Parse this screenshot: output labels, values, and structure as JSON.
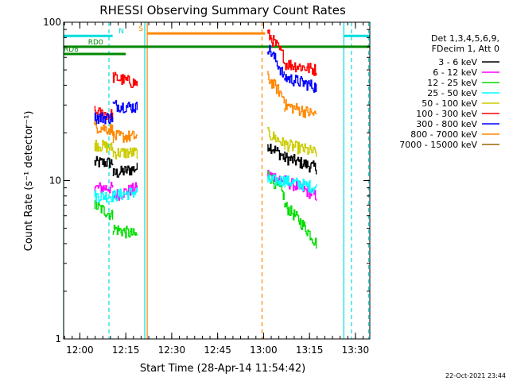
{
  "chart_data": {
    "type": "line",
    "title": "RHESSI Observing Summary Count Rates",
    "xlabel": "Start Time (28-Apr-14 11:54:42)",
    "ylabel": "Count Rate (s⁻¹ detector⁻¹)",
    "ylim": [
      1,
      100
    ],
    "yscale": "log",
    "x_unit": "minutes since 11:54:42",
    "xlim": [
      0,
      38
    ],
    "x_ticks": [
      {
        "label": "12:00",
        "t": 5.3
      },
      {
        "label": "12:15",
        "t": 20.3
      },
      {
        "label": "12:30",
        "t": 35.3
      },
      {
        "label": "12:45",
        "t": 50.3
      },
      {
        "label": "13:00",
        "t": 65.3
      },
      {
        "label": "13:15",
        "t": 80.3
      },
      {
        "label": "13:30",
        "t": 95.3
      }
    ],
    "x_range_min": [
      0,
      100
    ],
    "y_ticks": [
      {
        "label": "1",
        "v": 1
      },
      {
        "label": "10",
        "v": 10
      },
      {
        "label": "100",
        "v": 100
      }
    ],
    "legend_header": [
      "Det 1,3,4,5,6,9,",
      "FDecim 1, Att 0"
    ],
    "legend_position": "right",
    "timestamp": "22-Oct-2021 23:44",
    "series": [
      {
        "name": "3 - 6 keV",
        "color": "#000000",
        "segments": [
          {
            "t0": 10,
            "t1": 16,
            "v0": 13,
            "v1": 13
          },
          {
            "t0": 16,
            "t1": 24,
            "v0": 11,
            "v1": 12
          },
          {
            "t0": 66.5,
            "t1": 72,
            "v0": 17,
            "v1": 14
          },
          {
            "t0": 72,
            "t1": 82.5,
            "v0": 14,
            "v1": 12
          }
        ]
      },
      {
        "name": "6 - 12 keV",
        "color": "#ff00ff",
        "segments": [
          {
            "t0": 10,
            "t1": 16,
            "v0": 9,
            "v1": 9
          },
          {
            "t0": 16,
            "t1": 24,
            "v0": 8,
            "v1": 9
          },
          {
            "t0": 66.5,
            "t1": 72,
            "v0": 11,
            "v1": 10
          },
          {
            "t0": 72,
            "t1": 82.5,
            "v0": 10,
            "v1": 8
          }
        ]
      },
      {
        "name": "12 - 25 keV",
        "color": "#00dd00",
        "segments": [
          {
            "t0": 10,
            "t1": 16,
            "v0": 7,
            "v1": 6
          },
          {
            "t0": 16,
            "t1": 24,
            "v0": 5,
            "v1": 4.5
          },
          {
            "t0": 66.5,
            "t1": 72,
            "v0": 11,
            "v1": 8
          },
          {
            "t0": 72,
            "t1": 82.5,
            "v0": 7,
            "v1": 4
          }
        ]
      },
      {
        "name": "25 - 50 keV",
        "color": "#00ffff",
        "segments": [
          {
            "t0": 10,
            "t1": 16,
            "v0": 8,
            "v1": 8
          },
          {
            "t0": 16,
            "t1": 24,
            "v0": 8,
            "v1": 8.5
          },
          {
            "t0": 66.5,
            "t1": 72,
            "v0": 10,
            "v1": 10
          },
          {
            "t0": 72,
            "t1": 82.5,
            "v0": 10,
            "v1": 9
          }
        ]
      },
      {
        "name": "50 - 100 keV",
        "color": "#cccc00",
        "segments": [
          {
            "t0": 10,
            "t1": 16,
            "v0": 17,
            "v1": 16
          },
          {
            "t0": 16,
            "t1": 24,
            "v0": 15,
            "v1": 15
          },
          {
            "t0": 66.5,
            "t1": 72,
            "v0": 20,
            "v1": 17
          },
          {
            "t0": 72,
            "t1": 82.5,
            "v0": 17,
            "v1": 15
          }
        ]
      },
      {
        "name": "100 - 300 keV",
        "color": "#ff0000",
        "segments": [
          {
            "t0": 10,
            "t1": 16,
            "v0": 27,
            "v1": 26
          },
          {
            "t0": 16,
            "t1": 24,
            "v0": 45,
            "v1": 41
          },
          {
            "t0": 66.5,
            "t1": 72,
            "v0": 85,
            "v1": 60
          },
          {
            "t0": 72,
            "t1": 82.5,
            "v0": 55,
            "v1": 50
          }
        ]
      },
      {
        "name": "300 - 800 keV",
        "color": "#0000ff",
        "segments": [
          {
            "t0": 10,
            "t1": 16,
            "v0": 25,
            "v1": 25
          },
          {
            "t0": 16,
            "t1": 24,
            "v0": 30,
            "v1": 29
          },
          {
            "t0": 66.5,
            "t1": 72,
            "v0": 70,
            "v1": 45
          },
          {
            "t0": 72,
            "t1": 82.5,
            "v0": 45,
            "v1": 39
          }
        ]
      },
      {
        "name": "800 - 7000 keV",
        "color": "#ff8800",
        "segments": [
          {
            "t0": 10,
            "t1": 16,
            "v0": 22,
            "v1": 21
          },
          {
            "t0": 16,
            "t1": 24,
            "v0": 19,
            "v1": 19
          },
          {
            "t0": 66.5,
            "t1": 72,
            "v0": 45,
            "v1": 33
          },
          {
            "t0": 72,
            "t1": 82.5,
            "v0": 30,
            "v1": 26
          }
        ]
      },
      {
        "name": "7000 - 15000 keV",
        "color": "#996600",
        "segments": []
      }
    ],
    "flags": [
      {
        "label": "N",
        "color": "#00dddd",
        "y": 82,
        "t0": 0,
        "t1": 16,
        "label_t": 18
      },
      {
        "label": "N",
        "color": "#00dddd",
        "y": 82,
        "t0": 91.5,
        "t1": 100,
        "label_t": null
      },
      {
        "label": "RD0",
        "color": "#008800",
        "y": 70,
        "t0": 0,
        "t1": 100,
        "label_t": 8
      },
      {
        "label": "RD8",
        "color": "#008800",
        "y": 63,
        "t0": 0,
        "t1": 20.3,
        "label_t": 0
      },
      {
        "label": "S",
        "color": "#ff8800",
        "y": 85,
        "t0": 27.3,
        "t1": 65.8,
        "label_t": 24.5
      }
    ],
    "vlines": [
      {
        "t": 0,
        "color": "#00dddd",
        "dash": false
      },
      {
        "t": 14.8,
        "color": "#00dddd",
        "dash": true
      },
      {
        "t": 26.5,
        "color": "#00dddd",
        "dash": false
      },
      {
        "t": 27.3,
        "color": "#ff8800",
        "dash": false
      },
      {
        "t": 64.8,
        "color": "#ff8800",
        "dash": true
      },
      {
        "t": 91.5,
        "color": "#00dddd",
        "dash": false
      },
      {
        "t": 94,
        "color": "#00dddd",
        "dash": true
      },
      {
        "t": 99.6,
        "color": "#00dddd",
        "dash": true
      }
    ]
  }
}
